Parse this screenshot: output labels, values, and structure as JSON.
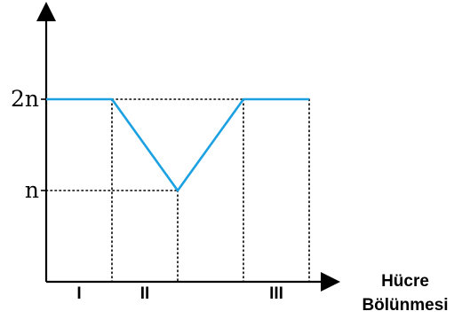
{
  "chart_data": {
    "type": "line",
    "title": "",
    "xlabel": [
      "Hücre",
      "Bölünmesi"
    ],
    "ylabel": "",
    "y_tick_labels": [
      "2n",
      "n"
    ],
    "y_ticks": [
      2,
      1
    ],
    "ylim": [
      0,
      3
    ],
    "xlim": [
      0,
      4.6
    ],
    "segments": [
      "I",
      "II",
      "III"
    ],
    "grid": false,
    "series": [
      {
        "color": "#1ba1e2",
        "points": [
          {
            "x": 0,
            "y": 2
          },
          {
            "x": 1,
            "y": 2
          },
          {
            "x": 2,
            "y": 1
          },
          {
            "x": 3,
            "y": 2
          },
          {
            "x": 4,
            "y": 2
          }
        ]
      }
    ],
    "guides": {
      "horizontal": [
        {
          "y": 2,
          "x_from": 1,
          "x_to": 4
        },
        {
          "y": 1,
          "x_from": 0,
          "x_to": 2
        }
      ],
      "vertical": [
        1,
        2,
        3,
        4
      ]
    }
  }
}
